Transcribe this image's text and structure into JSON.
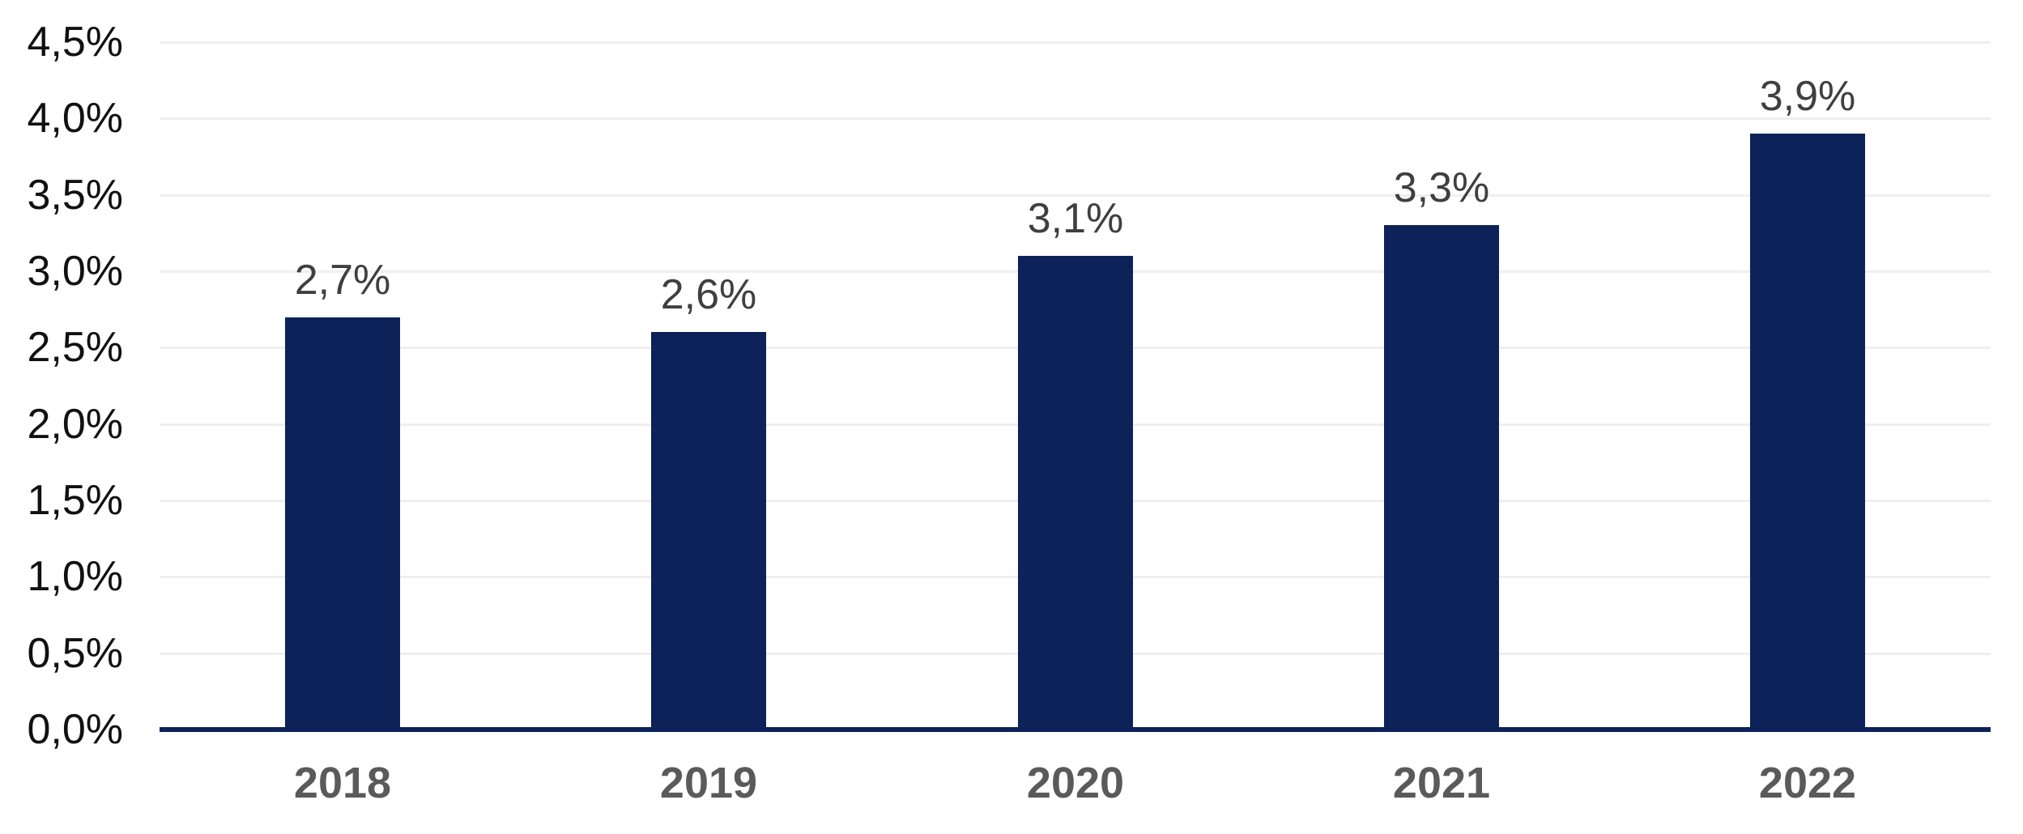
{
  "chart_data": {
    "type": "bar",
    "title": "",
    "xlabel": "",
    "ylabel": "",
    "categories": [
      "2018",
      "2019",
      "2020",
      "2021",
      "2022"
    ],
    "values": [
      2.7,
      2.6,
      3.1,
      3.3,
      3.9
    ],
    "data_labels": [
      "2,7%",
      "2,6%",
      "3,1%",
      "3,3%",
      "3,9%"
    ],
    "y_ticks": [
      {
        "value": 4.5,
        "label": "4,5%"
      },
      {
        "value": 4.0,
        "label": "4,0%"
      },
      {
        "value": 3.5,
        "label": "3,5%"
      },
      {
        "value": 3.0,
        "label": "3,0%"
      },
      {
        "value": 2.5,
        "label": "2,5%"
      },
      {
        "value": 2.0,
        "label": "2,0%"
      },
      {
        "value": 1.5,
        "label": "1,5%"
      },
      {
        "value": 1.0,
        "label": "1,0%"
      },
      {
        "value": 0.5,
        "label": "0,5%"
      },
      {
        "value": 0.0,
        "label": "0,0%"
      }
    ],
    "ylim": [
      0,
      4.5
    ],
    "grid": true,
    "legend": "none",
    "colors": {
      "bar": "#0c2258",
      "axis_line": "#0c2258",
      "gridline": "#efefef",
      "y_tick_label": "#111111",
      "data_label": "#3f3f3f",
      "x_tick_label": "#5a5a5a",
      "background": "#ffffff"
    }
  }
}
